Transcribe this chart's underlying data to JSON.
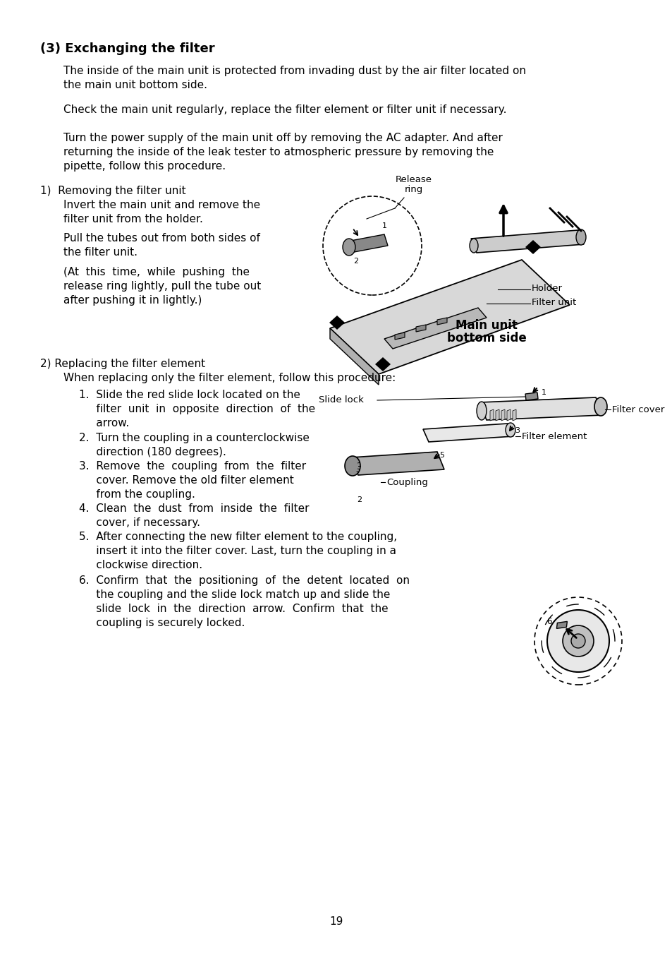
{
  "bg_color": "#ffffff",
  "page_number": "19",
  "title": "(3) Exchanging the filter",
  "para1a": "The inside of the main unit is protected from invading dust by the air filter located on",
  "para1b": "the main unit bottom side.",
  "para2": "Check the main unit regularly, replace the filter element or filter unit if necessary.",
  "para3a": "Turn the power supply of the main unit off by removing the AC adapter. And after",
  "para3b": "returning the inside of the leak tester to atmospheric pressure by removing the",
  "para3c": "pipette, follow this procedure.",
  "sec1_title": "1)  Removing the filter unit",
  "s1l1": "Invert the main unit and remove the",
  "s1l2": "filter unit from the holder.",
  "s1l3": "Pull the tubes out from both sides of",
  "s1l4": "the filter unit.",
  "s1l5": "(At  this  time,  while  pushing  the",
  "s1l6": "release ring lightly, pull the tube out",
  "s1l7": "after pushing it in lightly.)",
  "sec2_title": "2) Replacing the filter element",
  "sec2_intro": "When replacing only the filter element, follow this procedure:",
  "step1a": "1.  Slide the red slide lock located on the",
  "step1b": "     filter  unit  in  opposite  direction  of  the",
  "step1c": "     arrow.",
  "step2a": "2.  Turn the coupling in a counterclockwise",
  "step2b": "     direction (180 degrees).",
  "step3a": "3.  Remove  the  coupling  from  the  filter",
  "step3b": "     cover. Remove the old filter element",
  "step3c": "     from the coupling.",
  "step4a": "4.  Clean  the  dust  from  inside  the  filter",
  "step4b": "     cover, if necessary.",
  "step5a": "5.  After connecting the new filter element to the coupling,",
  "step5b": "     insert it into the filter cover. Last, turn the coupling in a",
  "step5c": "     clockwise direction.",
  "step6a": "6.  Confirm  that  the  positioning  of  the  detent  located  on",
  "step6b": "     the coupling and the slide lock match up and slide the",
  "step6c": "     slide  lock  in  the  direction  arrow.  Confirm  that  the",
  "step6d": "     coupling is securely locked.",
  "font_size_title": 13,
  "font_size_body": 11,
  "font_size_label": 9.5
}
